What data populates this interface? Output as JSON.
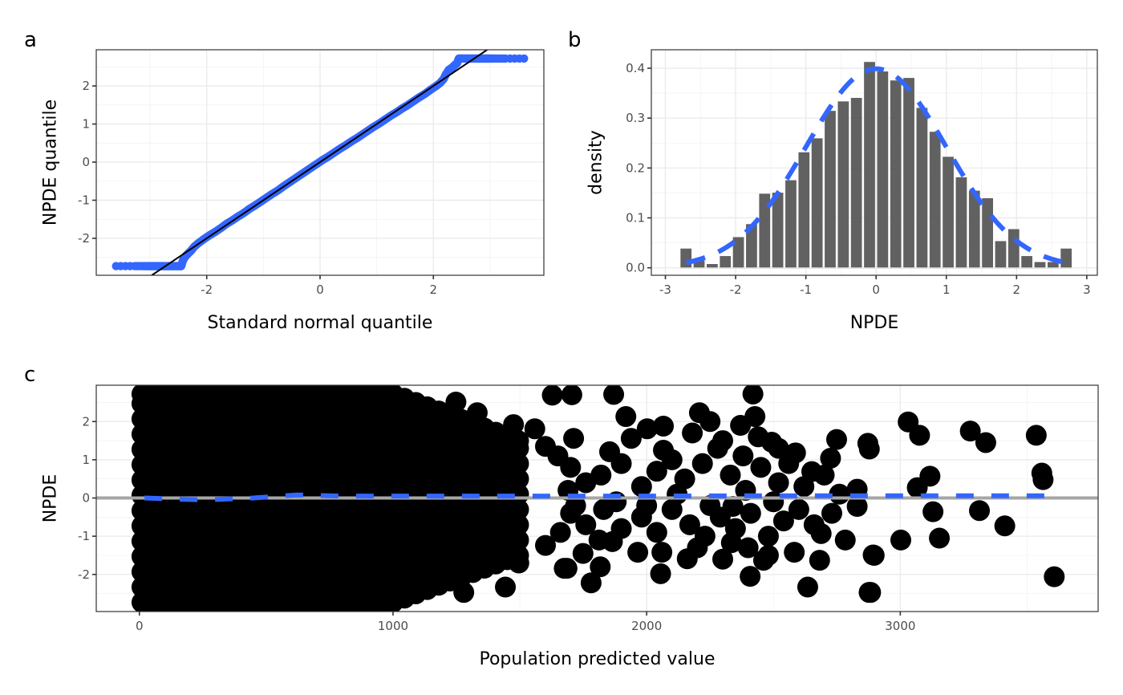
{
  "colors": {
    "accent_blue": "#3366ff",
    "bar_fill": "#595959",
    "point_black": "#000000",
    "zero_line": "#a6a6a6",
    "identity_line": "#000000"
  },
  "chart_data": [
    {
      "panel": "a",
      "type": "scatter",
      "title": "",
      "xlabel": "Standard normal quantile",
      "ylabel": "NPDE quantile",
      "xlim": [
        -3.95,
        3.95
      ],
      "ylim": [
        -2.97,
        2.95
      ],
      "xticks": [
        -2,
        0,
        2
      ],
      "xtick_labels": [
        "-2",
        "0",
        "2"
      ],
      "yticks": [
        -2,
        -1,
        0,
        1,
        2
      ],
      "ytick_labels": [
        "-2",
        "-1",
        "0",
        "1",
        "2"
      ],
      "grid": true,
      "reference_line": {
        "slope": 1,
        "intercept": 0
      },
      "points": [
        [
          -3.6,
          -2.73
        ],
        [
          -3.27,
          -2.73
        ],
        [
          -3.13,
          -2.73
        ],
        [
          -3.05,
          -2.73
        ],
        [
          -2.98,
          -2.73
        ],
        [
          -2.92,
          -2.73
        ],
        [
          -2.86,
          -2.73
        ],
        [
          -2.8,
          -2.73
        ],
        [
          -2.74,
          -2.73
        ],
        [
          -2.68,
          -2.73
        ],
        [
          -2.62,
          -2.73
        ],
        [
          -2.56,
          -2.73
        ],
        [
          -2.5,
          -2.73
        ],
        [
          -2.45,
          -2.73
        ],
        [
          -2.42,
          -2.58
        ],
        [
          -2.38,
          -2.48
        ],
        [
          -2.33,
          -2.4
        ],
        [
          -2.28,
          -2.33
        ],
        [
          -2.22,
          -2.22
        ],
        [
          -2.15,
          -2.13
        ],
        [
          -2.05,
          -2.02
        ],
        [
          -1.95,
          -1.92
        ],
        [
          -1.85,
          -1.83
        ],
        [
          -1.75,
          -1.73
        ],
        [
          -1.65,
          -1.62
        ],
        [
          -1.55,
          -1.53
        ],
        [
          -1.45,
          -1.43
        ],
        [
          -1.35,
          -1.34
        ],
        [
          -1.25,
          -1.23
        ],
        [
          -1.15,
          -1.14
        ],
        [
          -1.05,
          -1.04
        ],
        [
          -0.95,
          -0.94
        ],
        [
          -0.85,
          -0.84
        ],
        [
          -0.75,
          -0.75
        ],
        [
          -0.65,
          -0.64
        ],
        [
          -0.55,
          -0.54
        ],
        [
          -0.45,
          -0.44
        ],
        [
          -0.35,
          -0.34
        ],
        [
          -0.25,
          -0.24
        ],
        [
          -0.15,
          -0.14
        ],
        [
          -0.05,
          -0.04
        ],
        [
          0.05,
          0.06
        ],
        [
          0.15,
          0.15
        ],
        [
          0.25,
          0.25
        ],
        [
          0.35,
          0.35
        ],
        [
          0.45,
          0.44
        ],
        [
          0.55,
          0.54
        ],
        [
          0.65,
          0.63
        ],
        [
          0.75,
          0.73
        ],
        [
          0.85,
          0.83
        ],
        [
          0.95,
          0.93
        ],
        [
          1.05,
          1.02
        ],
        [
          1.15,
          1.12
        ],
        [
          1.25,
          1.22
        ],
        [
          1.35,
          1.31
        ],
        [
          1.45,
          1.41
        ],
        [
          1.55,
          1.5
        ],
        [
          1.65,
          1.6
        ],
        [
          1.75,
          1.7
        ],
        [
          1.85,
          1.79
        ],
        [
          1.95,
          1.9
        ],
        [
          2.05,
          2.0
        ],
        [
          2.12,
          2.08
        ],
        [
          2.18,
          2.18
        ],
        [
          2.22,
          2.3
        ],
        [
          2.27,
          2.42
        ],
        [
          2.33,
          2.48
        ],
        [
          2.38,
          2.55
        ],
        [
          2.42,
          2.6
        ],
        [
          2.45,
          2.72
        ],
        [
          2.5,
          2.72
        ],
        [
          2.56,
          2.72
        ],
        [
          2.62,
          2.72
        ],
        [
          2.68,
          2.72
        ],
        [
          2.74,
          2.72
        ],
        [
          2.8,
          2.72
        ],
        [
          2.86,
          2.72
        ],
        [
          2.92,
          2.72
        ],
        [
          2.98,
          2.72
        ],
        [
          3.05,
          2.72
        ],
        [
          3.13,
          2.72
        ],
        [
          3.27,
          2.72
        ],
        [
          3.6,
          2.72
        ]
      ]
    },
    {
      "panel": "b",
      "type": "bar",
      "title": "",
      "xlabel": "NPDE",
      "ylabel": "density",
      "xlim": [
        -3.2,
        3.15
      ],
      "ylim": [
        -0.015,
        0.437
      ],
      "xticks": [
        -3,
        -2,
        -1,
        0,
        1,
        2,
        3
      ],
      "xtick_labels": [
        "-3",
        "-2",
        "-1",
        "0",
        "1",
        "2",
        "3"
      ],
      "yticks": [
        0.0,
        0.1,
        0.2,
        0.3,
        0.4
      ],
      "ytick_labels": [
        "0.0",
        "0.1",
        "0.2",
        "0.3",
        "0.4"
      ],
      "grid": true,
      "bins": {
        "start": -2.8,
        "end": 2.8,
        "count": 30
      },
      "values": [
        0.039,
        0.015,
        0.008,
        0.024,
        0.062,
        0.088,
        0.149,
        0.151,
        0.176,
        0.232,
        0.26,
        0.315,
        0.334,
        0.341,
        0.413,
        0.394,
        0.376,
        0.381,
        0.321,
        0.273,
        0.223,
        0.182,
        0.155,
        0.14,
        0.054,
        0.078,
        0.024,
        0.012,
        0.012,
        0.039
      ],
      "overlay": {
        "type": "line",
        "name": "standard normal density",
        "style": "dashed",
        "mean": 0,
        "sd": 1,
        "x_range": [
          -2.7,
          2.7
        ]
      }
    },
    {
      "panel": "c",
      "type": "scatter",
      "title": "",
      "xlabel": "Population predicted value",
      "ylabel": "NPDE",
      "xlim": [
        -170,
        3780
      ],
      "ylim": [
        -2.97,
        2.95
      ],
      "xticks": [
        0,
        1000,
        2000,
        3000
      ],
      "xtick_labels": [
        "0",
        "1000",
        "2000",
        "3000"
      ],
      "yticks": [
        -2,
        -1,
        0,
        1,
        2
      ],
      "ytick_labels": [
        "-2",
        "-1",
        "0",
        "1",
        "2"
      ],
      "grid": true,
      "hline": {
        "y": 0
      },
      "trend": {
        "name": "smoother",
        "style": "dashed",
        "x": [
          20,
          250,
          450,
          620,
          800,
          1000,
          1500,
          2000,
          2500,
          3000,
          3580
        ],
        "y": [
          0.0,
          -0.05,
          0.0,
          0.08,
          0.05,
          0.05,
          0.05,
          0.05,
          0.06,
          0.06,
          0.06
        ]
      },
      "dense_region": {
        "x_range": [
          0,
          1500
        ],
        "y_range": [
          -2.73,
          2.72
        ]
      },
      "points": [
        [
          1248,
          2.51
        ],
        [
          1332,
          2.23
        ],
        [
          1121,
          2.06
        ],
        [
          1475,
          1.92
        ],
        [
          1559,
          1.81
        ],
        [
          1601,
          1.35
        ],
        [
          1628,
          2.69
        ],
        [
          1279,
          -2.47
        ],
        [
          1443,
          -2.33
        ],
        [
          1190,
          -2.15
        ],
        [
          1496,
          -1.7
        ],
        [
          1348,
          -1.77
        ],
        [
          1601,
          -1.24
        ],
        [
          1675,
          -1.84
        ],
        [
          1095,
          -2.12
        ],
        [
          1705,
          2.7
        ],
        [
          1870,
          2.71
        ],
        [
          1918,
          2.13
        ],
        [
          2066,
          1.88
        ],
        [
          2208,
          2.23
        ],
        [
          1712,
          1.56
        ],
        [
          1939,
          1.56
        ],
        [
          2066,
          1.25
        ],
        [
          1854,
          1.21
        ],
        [
          2002,
          1.81
        ],
        [
          1812,
          -1.1
        ],
        [
          1865,
          -1.14
        ],
        [
          1749,
          -1.45
        ],
        [
          1965,
          -1.42
        ],
        [
          1686,
          -1.84
        ],
        [
          1781,
          -2.22
        ],
        [
          1817,
          -1.8
        ],
        [
          2055,
          -1.98
        ],
        [
          2160,
          -1.59
        ],
        [
          2060,
          -1.42
        ],
        [
          2419,
          2.72
        ],
        [
          2427,
          2.13
        ],
        [
          2493,
          1.46
        ],
        [
          2587,
          1.18
        ],
        [
          2749,
          1.53
        ],
        [
          2725,
          1.04
        ],
        [
          2872,
          1.43
        ],
        [
          2651,
          0.69
        ],
        [
          2830,
          0.23
        ],
        [
          2830,
          -0.22
        ],
        [
          2783,
          -1.1
        ],
        [
          2688,
          -0.93
        ],
        [
          2893,
          -1.49
        ],
        [
          2682,
          -1.63
        ],
        [
          2408,
          -2.05
        ],
        [
          2635,
          -2.33
        ],
        [
          2877,
          -2.47
        ],
        [
          2334,
          -1.17
        ],
        [
          2461,
          -1.63
        ],
        [
          2582,
          -1.42
        ],
        [
          2340,
          -0.22
        ],
        [
          3031,
          1.99
        ],
        [
          3076,
          1.64
        ],
        [
          3276,
          1.75
        ],
        [
          3337,
          1.45
        ],
        [
          3536,
          1.64
        ],
        [
          3558,
          0.65
        ],
        [
          3563,
          0.48
        ],
        [
          3117,
          0.57
        ],
        [
          3067,
          0.27
        ],
        [
          3129,
          -0.36
        ],
        [
          3312,
          -0.33
        ],
        [
          3412,
          -0.73
        ],
        [
          3002,
          -1.1
        ],
        [
          3154,
          -1.05
        ],
        [
          3607,
          -2.06
        ],
        [
          2878,
          1.28
        ],
        [
          2897,
          -1.5
        ],
        [
          2883,
          -2.47
        ],
        [
          1700,
          0.8
        ],
        [
          1760,
          0.4
        ],
        [
          1820,
          0.6
        ],
        [
          1900,
          0.9
        ],
        [
          1980,
          0.3
        ],
        [
          2040,
          0.7
        ],
        [
          2100,
          1.0
        ],
        [
          2150,
          0.5
        ],
        [
          2220,
          0.9
        ],
        [
          2280,
          1.3
        ],
        [
          2330,
          0.6
        ],
        [
          2380,
          1.1
        ],
        [
          2450,
          0.8
        ],
        [
          2520,
          0.4
        ],
        [
          2560,
          0.9
        ],
        [
          2620,
          0.3
        ],
        [
          2700,
          0.6
        ],
        [
          2760,
          0.1
        ],
        [
          1700,
          -0.4
        ],
        [
          1760,
          -0.7
        ],
        [
          1830,
          -0.3
        ],
        [
          1900,
          -0.8
        ],
        [
          1980,
          -0.5
        ],
        [
          2040,
          -0.9
        ],
        [
          2100,
          -0.3
        ],
        [
          2170,
          -0.7
        ],
        [
          2230,
          -1.0
        ],
        [
          2290,
          -0.5
        ],
        [
          2350,
          -0.8
        ],
        [
          2410,
          -0.4
        ],
        [
          2480,
          -1.0
        ],
        [
          2540,
          -0.6
        ],
        [
          2600,
          -0.3
        ],
        [
          2660,
          -0.7
        ],
        [
          2730,
          -0.4
        ],
        [
          1650,
          1.1
        ],
        [
          1660,
          -0.9
        ],
        [
          1690,
          0.2
        ],
        [
          1720,
          -0.2
        ],
        [
          1880,
          -0.1
        ],
        [
          2000,
          -0.2
        ],
        [
          2120,
          0.1
        ],
        [
          2250,
          -0.2
        ],
        [
          2390,
          0.2
        ],
        [
          2500,
          -0.1
        ],
        [
          2250,
          2.0
        ],
        [
          2180,
          1.7
        ],
        [
          2300,
          1.5
        ],
        [
          2370,
          1.9
        ],
        [
          2440,
          1.6
        ],
        [
          2520,
          1.3
        ],
        [
          2200,
          -1.3
        ],
        [
          2300,
          -1.6
        ],
        [
          2400,
          -1.3
        ],
        [
          2480,
          -1.5
        ]
      ]
    }
  ],
  "panel_labels": [
    "a",
    "b",
    "c"
  ]
}
